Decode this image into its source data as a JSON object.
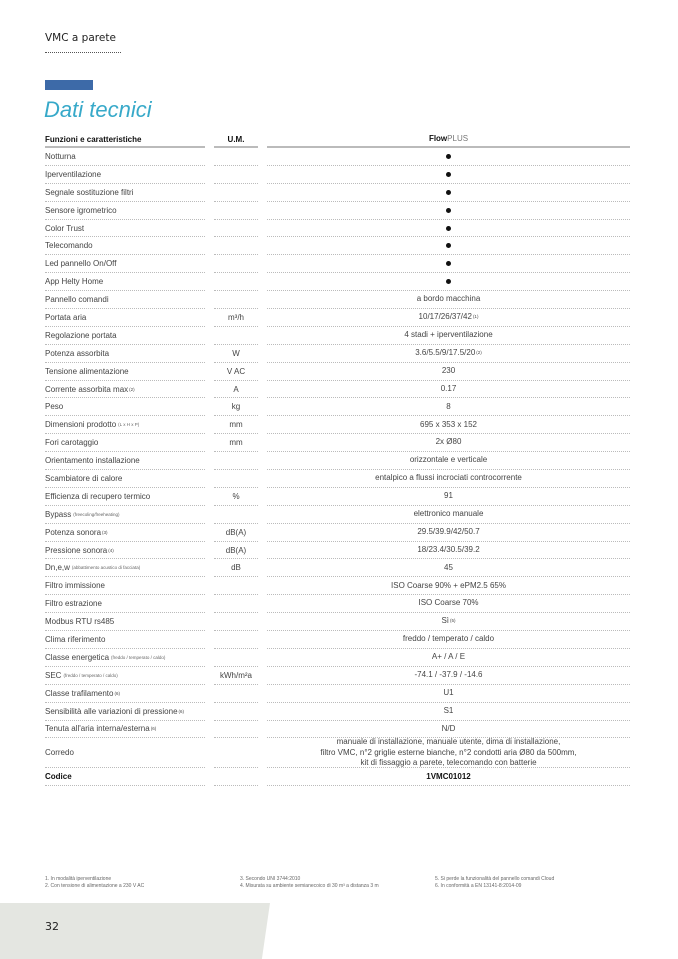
{
  "section": "VMC a parete",
  "title": "Dati tecnici",
  "accent": "#3d6aa8",
  "title_color": "#37a9c9",
  "header": {
    "col1": "Funzioni e caratteristiche",
    "col2": "U.M.",
    "col3_bold": "Flow",
    "col3_light": "PLUS"
  },
  "rows": [
    {
      "label": "Notturna",
      "value": "bullet"
    },
    {
      "label": "Iperventilazione",
      "value": "bullet"
    },
    {
      "label": "Segnale sostituzione filtri",
      "value": "bullet"
    },
    {
      "label": "Sensore igrometrico",
      "value": "bullet"
    },
    {
      "label": "Color Trust",
      "value": "bullet"
    },
    {
      "label": "Telecomando",
      "value": "bullet"
    },
    {
      "label": "Led pannello On/Off",
      "value": "bullet"
    },
    {
      "label": "App Helty Home",
      "value": "bullet"
    },
    {
      "label": "Pannello comandi",
      "value": "a bordo macchina"
    },
    {
      "label": "Portata aria",
      "um": "m³/h",
      "value": "10/17/26/37/42",
      "value_sup": "(1)"
    },
    {
      "label": "Regolazione portata",
      "value": "4 stadi + iperventilazione"
    },
    {
      "label": "Potenza assorbita",
      "um": "W",
      "value": "3.6/5.5/9/17.5/20",
      "value_sup": "(2)"
    },
    {
      "label": "Tensione alimentazione",
      "um": "V AC",
      "value": "230"
    },
    {
      "label": "Corrente assorbita max",
      "sup": "(2)",
      "um": "A",
      "value": "0.17"
    },
    {
      "label": "Peso",
      "um": "kg",
      "value": "8"
    },
    {
      "label": "Dimensioni prodotto",
      "note": "(L x H x P)",
      "um": "mm",
      "value": "695 x 353 x 152"
    },
    {
      "label": "Fori carotaggio",
      "um": "mm",
      "value": "2x Ø80"
    },
    {
      "label": "Orientamento installazione",
      "value": "orizzontale e verticale"
    },
    {
      "label": "Scambiatore di calore",
      "value": "entalpico a flussi incrociati controcorrente"
    },
    {
      "label": "Efficienza di recupero termico",
      "um": "%",
      "value": "91"
    },
    {
      "label": "Bypass",
      "note": "(freecoling/freeheating)",
      "value": "elettronico manuale"
    },
    {
      "label": "Potenza sonora",
      "sup": "(3)",
      "um": "dB(A)",
      "value": "29.5/39.9/42/50.7"
    },
    {
      "label": "Pressione sonora",
      "sup": "(4)",
      "um": "dB(A)",
      "value": "18/23.4/30.5/39.2"
    },
    {
      "label": "Dn,e,w",
      "note": "(abbattimento acustico di facciata)",
      "um": "dB",
      "value": "45"
    },
    {
      "label": "Filtro immissione",
      "value": "ISO Coarse 90% + ePM2.5 65%"
    },
    {
      "label": "Filtro estrazione",
      "value": "ISO Coarse 70%"
    },
    {
      "label": "Modbus RTU rs485",
      "value": "Sì",
      "value_sup": "(5)"
    },
    {
      "label": "Clima riferimento",
      "value": "freddo / temperato / caldo"
    },
    {
      "label": "Classe energetica",
      "note": "(freddo / temperato / caldo)",
      "value": "A+ / A / E"
    },
    {
      "label": "SEC",
      "note": "(freddo / temperato / caldo)",
      "um": "kWh/m²a",
      "value": "-74.1 / -37.9 / -14.6"
    },
    {
      "label": "Classe trafilamento",
      "sup": "(6)",
      "value": "U1"
    },
    {
      "label": "Sensibilità alle variazioni di pressione",
      "sup": "(6)",
      "value": "S1"
    },
    {
      "label": "Tenuta all'aria interna/esterna",
      "sup": "(6)",
      "value": "N/D"
    },
    {
      "label": "Corredo",
      "value": "manuale di installazione, manuale utente, dima di installazione,\nfiltro VMC, n°2 griglie esterne bianche, n°2 condotti aria Ø80 da 500mm,\nkit di fissaggio a parete, telecomando con batterie",
      "tall": true
    },
    {
      "label": "Codice",
      "value": "1VMC01012",
      "bold": true
    }
  ],
  "footnotes": [
    [
      "1.  In modalità iperventilazione",
      "2.  Con tensione di alimentazione a 230 V AC"
    ],
    [
      "3.  Secondo UNI 3744:2010",
      "4.  Misurata su ambiente semianecoico di 30 m³ a distanza 3 m"
    ],
    [
      "5.  Si perde la funzionalità del pannello comandi Cloud",
      "6.  In conformità a EN 13141-8:2014-09"
    ]
  ],
  "page_number": "32"
}
